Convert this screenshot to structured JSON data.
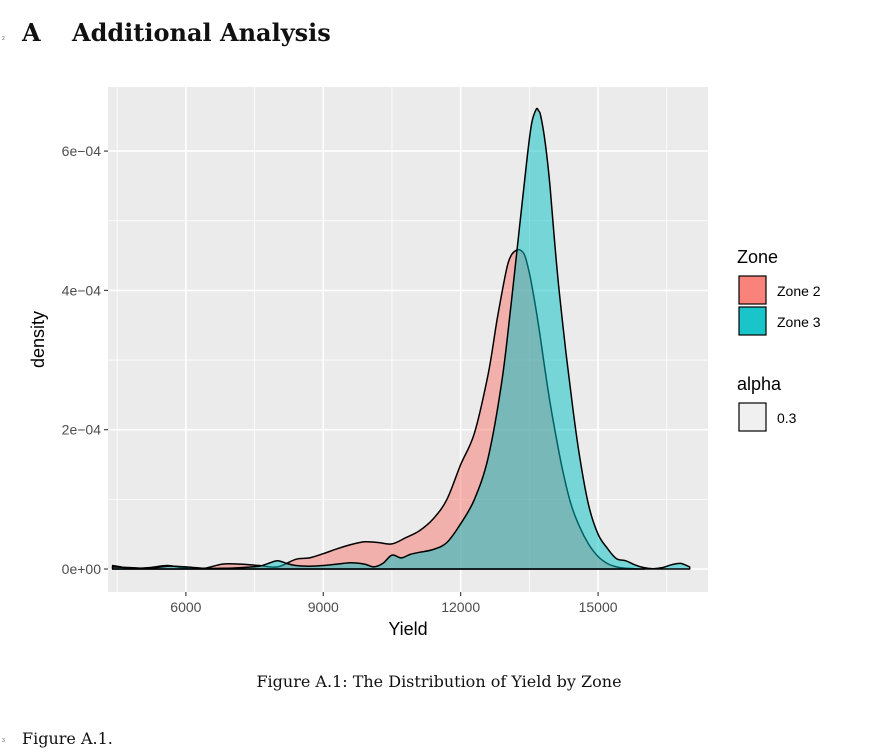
{
  "page": {
    "line_numbers": [
      "2",
      "3"
    ],
    "section_number": "A",
    "section_title": "Additional Analysis",
    "caption": "Figure A.1: The Distribution of Yield by Zone",
    "body_text": "Figure A.1."
  },
  "chart_data": {
    "type": "area",
    "xlabel": "Yield",
    "ylabel": "density",
    "xlim": [
      4300,
      17400
    ],
    "ylim": [
      -3.3e-05,
      0.000692
    ],
    "x_ticks": [
      6000,
      9000,
      12000,
      15000
    ],
    "x_tick_labels": [
      "6000",
      "9000",
      "12000",
      "15000"
    ],
    "y_ticks": [
      0,
      0.0002,
      0.0004,
      0.0006
    ],
    "y_tick_labels": [
      "0e+00",
      "2e−04",
      "4e−04",
      "6e−04"
    ],
    "grid": true,
    "background": "#EBEBEB",
    "legend_position": "right",
    "legend": {
      "zone_title": "Zone",
      "alpha_title": "alpha",
      "alpha_label": "0.3"
    },
    "series": [
      {
        "name": "Zone 2",
        "color": "#F8766D",
        "opacity": 0.5,
        "x": [
          4400,
          4800,
          5200,
          5600,
          6000,
          6400,
          6800,
          7200,
          7600,
          8000,
          8400,
          8700,
          9000,
          9300,
          9600,
          9900,
          10200,
          10500,
          10800,
          11100,
          11400,
          11700,
          12000,
          12300,
          12600,
          12800,
          13000,
          13100,
          13200,
          13300,
          13400,
          13500,
          13600,
          13700,
          13800,
          13900,
          14000,
          14200,
          14400,
          14600,
          14800,
          15000,
          15200,
          15400,
          15600,
          15800,
          16000
        ],
        "y": [
          5e-06,
          1e-06,
          2e-06,
          5e-06,
          1e-06,
          1e-06,
          7e-06,
          7e-06,
          5e-06,
          3e-06,
          1.4e-05,
          1.6e-05,
          2.2e-05,
          2.9e-05,
          3.5e-05,
          3.9e-05,
          3.8e-05,
          3.6e-05,
          4.5e-05,
          5.5e-05,
          7.2e-05,
          0.0001,
          0.00015,
          0.000195,
          0.00028,
          0.00036,
          0.00043,
          0.00045,
          0.000457,
          0.000458,
          0.00045,
          0.000425,
          0.00039,
          0.00035,
          0.000305,
          0.00026,
          0.00022,
          0.00015,
          9.5e-05,
          6e-05,
          3.5e-05,
          1.8e-05,
          8e-06,
          3e-06,
          1e-06,
          5e-07,
          0
        ]
      },
      {
        "name": "Zone 3",
        "color": "#00BFC4",
        "opacity": 0.5,
        "x": [
          4400,
          4800,
          5200,
          5600,
          6000,
          6400,
          6800,
          7200,
          7600,
          7800,
          8000,
          8200,
          8400,
          8700,
          9000,
          9300,
          9600,
          9900,
          10100,
          10300,
          10500,
          10700,
          10900,
          11100,
          11400,
          11700,
          12000,
          12300,
          12600,
          12900,
          13100,
          13300,
          13450,
          13550,
          13650,
          13700,
          13750,
          13850,
          13950,
          14050,
          14150,
          14300,
          14450,
          14600,
          14800,
          15000,
          15200,
          15400,
          15600,
          15800,
          16000,
          16200,
          16400,
          16600,
          16800,
          17000
        ],
        "y": [
          3e-06,
          2e-06,
          1e-06,
          4e-06,
          3e-06,
          1e-06,
          1e-06,
          2e-06,
          4e-06,
          8e-06,
          1.2e-05,
          8e-06,
          5e-06,
          4e-06,
          5e-06,
          7e-06,
          9e-06,
          7e-06,
          3e-06,
          8e-06,
          2e-05,
          1.6e-05,
          2.1e-05,
          2.4e-05,
          2.8e-05,
          3.8e-05,
          6.5e-05,
          0.0001,
          0.00016,
          0.00027,
          0.00038,
          0.0005,
          0.00059,
          0.00064,
          0.00066,
          0.000658,
          0.00065,
          0.00061,
          0.00055,
          0.00047,
          0.0004,
          0.00031,
          0.00023,
          0.00016,
          9e-05,
          5e-05,
          3e-05,
          1.5e-05,
          1.2e-05,
          6e-06,
          2e-06,
          5e-07,
          2e-06,
          6e-06,
          8e-06,
          3e-06
        ]
      }
    ]
  }
}
